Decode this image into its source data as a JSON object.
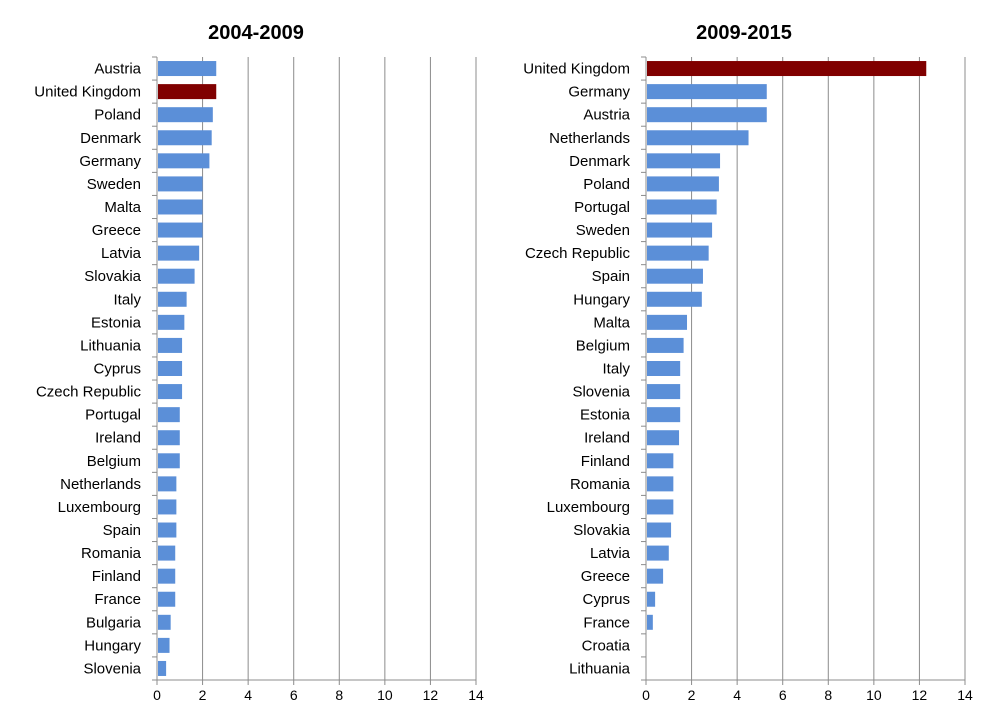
{
  "colors": {
    "bar": "#5b8fd8",
    "highlight": "#800000",
    "grid": "#8c8c8c",
    "axis": "#8c8c8c"
  },
  "chart_data": [
    {
      "type": "bar",
      "orientation": "horizontal",
      "title": "2004-2009",
      "xlim": [
        0,
        14
      ],
      "xticks": [
        0,
        2,
        4,
        6,
        8,
        10,
        12,
        14
      ],
      "grid": true,
      "highlight": "United Kingdom",
      "categories": [
        "Austria",
        "United Kingdom",
        "Poland",
        "Denmark",
        "Germany",
        "Sweden",
        "Malta",
        "Greece",
        "Latvia",
        "Slovakia",
        "Italy",
        "Estonia",
        "Lithuania",
        "Cyprus",
        "Czech Republic",
        "Portugal",
        "Ireland",
        "Belgium",
        "Netherlands",
        "Luxembourg",
        "Spain",
        "Romania",
        "Finland",
        "France",
        "Bulgaria",
        "Hungary",
        "Slovenia"
      ],
      "values": [
        2.6,
        2.6,
        2.45,
        2.4,
        2.3,
        2.0,
        2.0,
        2.0,
        1.85,
        1.65,
        1.3,
        1.2,
        1.1,
        1.1,
        1.1,
        1.0,
        1.0,
        1.0,
        0.85,
        0.85,
        0.85,
        0.8,
        0.8,
        0.8,
        0.6,
        0.55,
        0.4
      ]
    },
    {
      "type": "bar",
      "orientation": "horizontal",
      "title": "2009-2015",
      "xlim": [
        0,
        14
      ],
      "xticks": [
        0,
        2,
        4,
        6,
        8,
        10,
        12,
        14
      ],
      "grid": true,
      "highlight": "United Kingdom",
      "categories": [
        "United Kingdom",
        "Germany",
        "Austria",
        "Netherlands",
        "Denmark",
        "Poland",
        "Portugal",
        "Sweden",
        "Czech Republic",
        "Spain",
        "Hungary",
        "Malta",
        "Belgium",
        "Italy",
        "Slovenia",
        "Estonia",
        "Ireland",
        "Finland",
        "Romania",
        "Luxembourg",
        "Slovakia",
        "Latvia",
        "Greece",
        "Cyprus",
        "France",
        "Croatia",
        "Lithuania"
      ],
      "values": [
        12.3,
        5.3,
        5.3,
        4.5,
        3.25,
        3.2,
        3.1,
        2.9,
        2.75,
        2.5,
        2.45,
        1.8,
        1.65,
        1.5,
        1.5,
        1.5,
        1.45,
        1.2,
        1.2,
        1.2,
        1.1,
        1.0,
        0.75,
        0.4,
        0.3,
        0.0,
        0.0
      ]
    }
  ]
}
